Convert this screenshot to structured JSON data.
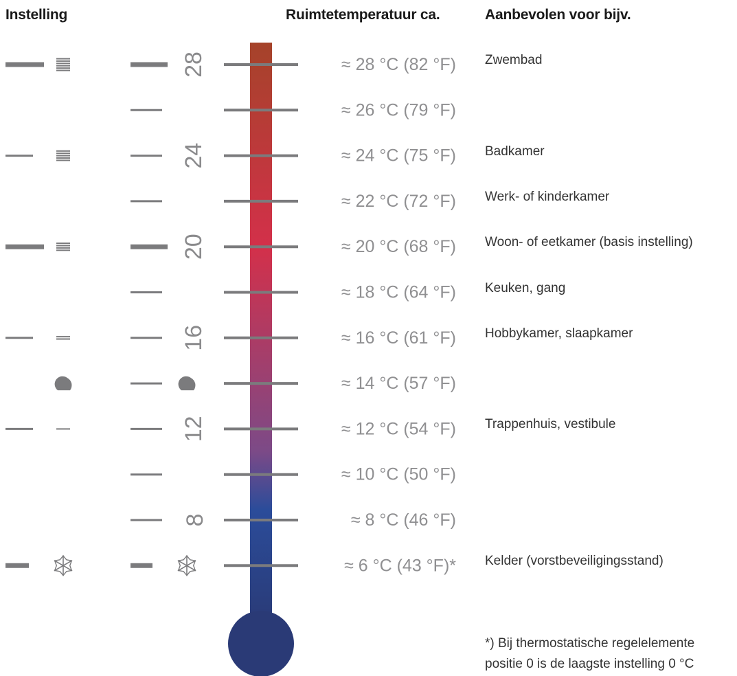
{
  "headers": {
    "setting": "Instelling",
    "room_temp": "Ruimtetemperatuur ca.",
    "recommended": "Aanbevolen voor bijv."
  },
  "colors": {
    "mark": "#7b7b7d",
    "number": "#8a8a8c",
    "temp_text": "#8f8f91",
    "rec_text": "#333333",
    "tube_top": "#a5432a",
    "tube_mid": "#d3304a",
    "tube_lower": "#7c4a87",
    "tube_blue": "#2b4c9a",
    "bulb": "#2a3a76"
  },
  "rows": [
    {
      "scale": "28",
      "temp": "≈ 28 °C (82 °F)",
      "rec": "Zwembad",
      "left_mark": "thick",
      "left_icon": "bars-6",
      "dial_mark": "thick",
      "dial_icon": null
    },
    {
      "scale": null,
      "temp": "≈ 26 °C  (79 °F)",
      "rec": "",
      "left_mark": null,
      "left_icon": null,
      "dial_mark": "thin",
      "dial_icon": null
    },
    {
      "scale": "24",
      "temp": "≈ 24 °C  (75 °F)",
      "rec": "Badkamer",
      "left_mark": "thin",
      "left_icon": "bars-5",
      "dial_mark": "thin",
      "dial_icon": null
    },
    {
      "scale": null,
      "temp": "≈ 22 °C (72 °F)",
      "rec": "Werk- of kinderkamer",
      "left_mark": null,
      "left_icon": null,
      "dial_mark": "thin",
      "dial_icon": null
    },
    {
      "scale": "20",
      "temp": "≈ 20 °C (68 °F)",
      "rec": "Woon- of eetkamer (basis instelling)",
      "left_mark": "thick",
      "left_icon": "bars-4",
      "dial_mark": "thick",
      "dial_icon": null
    },
    {
      "scale": null,
      "temp": "≈ 18 °C (64 °F)",
      "rec": "Keuken, gang",
      "left_mark": null,
      "left_icon": null,
      "dial_mark": "thin",
      "dial_icon": null
    },
    {
      "scale": "16",
      "temp": "≈ 16 °C (61 °F)",
      "rec": "Hobbykamer, slaapkamer",
      "left_mark": "thin",
      "left_icon": "bars-2",
      "dial_mark": "thin",
      "dial_icon": null
    },
    {
      "scale": null,
      "temp": "≈ 14 °C (57 °F)",
      "rec": "",
      "left_mark": null,
      "left_icon": "moon-icon",
      "dial_mark": "thin",
      "dial_icon": "moon-icon"
    },
    {
      "scale": "12",
      "temp": "≈ 12 °C (54 °F)",
      "rec": "Trappenhuis, vestibule",
      "left_mark": "thin",
      "left_icon": "bars-1",
      "dial_mark": "thin",
      "dial_icon": null
    },
    {
      "scale": null,
      "temp": "≈ 10 °C  (50 °F)",
      "rec": "",
      "left_mark": null,
      "left_icon": null,
      "dial_mark": "thin",
      "dial_icon": null
    },
    {
      "scale": "8",
      "temp": "≈ 8 °C (46 °F)",
      "rec": "",
      "left_mark": null,
      "left_icon": null,
      "dial_mark": "thin",
      "dial_icon": null
    },
    {
      "scale": null,
      "temp": "≈ 6 °C (43 °F)*",
      "rec": "Kelder (vorstbeveiligingsstand)",
      "left_mark": "thick",
      "left_icon": "snowflake-icon",
      "dial_mark": "thick",
      "dial_icon": "snowflake-icon"
    }
  ],
  "footnote": {
    "line1": "*) Bij thermostatische regelelemente",
    "line2": "positie 0 is de laagste instelling 0 °C"
  }
}
